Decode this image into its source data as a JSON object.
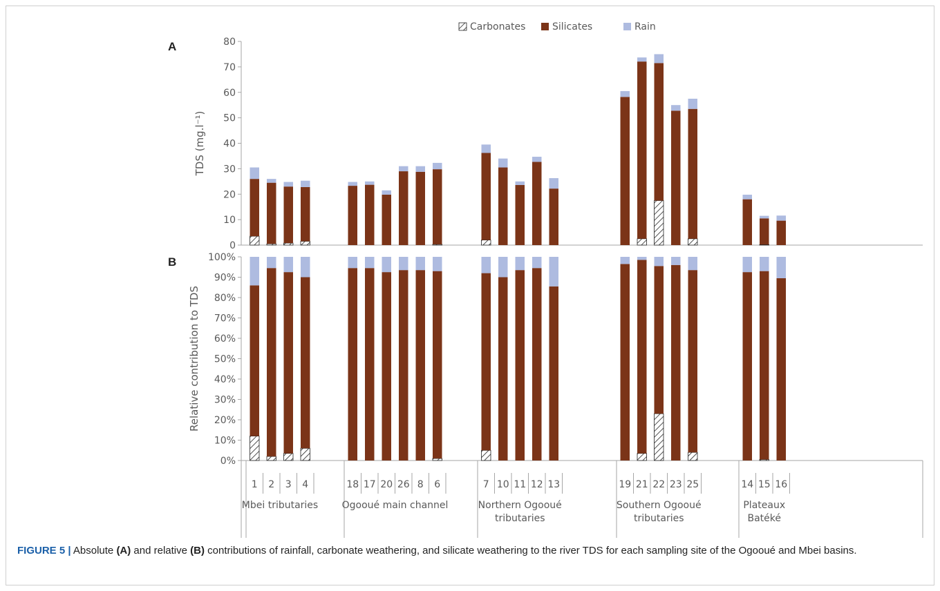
{
  "chart_data": [
    {
      "panel_label": "A",
      "type": "bar",
      "stacked": true,
      "ylabel": "TDS (mg.l⁻¹)",
      "ylim": [
        0,
        80
      ],
      "yticks": [
        0,
        10,
        20,
        30,
        40,
        50,
        60,
        70,
        80
      ],
      "categories": [
        "1",
        "2",
        "3",
        "4",
        "18",
        "17",
        "20",
        "26",
        "8",
        "6",
        "7",
        "10",
        "11",
        "12",
        "13",
        "19",
        "21",
        "22",
        "23",
        "25",
        "14",
        "15",
        "16"
      ],
      "series": [
        {
          "name": "Carbonates",
          "values": [
            3.5,
            0.5,
            0.8,
            1.5,
            0,
            0,
            0,
            0,
            0,
            0.3,
            2.0,
            0,
            0,
            0,
            0,
            0,
            2.5,
            17.5,
            0,
            2.5,
            0,
            0.2,
            0
          ]
        },
        {
          "name": "Silicates",
          "values": [
            22.5,
            24.0,
            22.2,
            21.3,
            23.3,
            23.7,
            19.8,
            29.0,
            28.8,
            29.5,
            34.2,
            30.5,
            23.6,
            32.7,
            22.2,
            58.2,
            69.6,
            54.0,
            52.8,
            51.0,
            18.0,
            10.3,
            9.6
          ]
        },
        {
          "name": "Rain",
          "values": [
            4.5,
            1.5,
            1.8,
            2.5,
            1.5,
            1.3,
            1.7,
            2.0,
            2.2,
            2.5,
            3.3,
            3.5,
            1.4,
            2.0,
            4.1,
            2.3,
            1.6,
            3.5,
            2.2,
            4.0,
            1.8,
            1.0,
            2.0
          ]
        }
      ]
    },
    {
      "panel_label": "B",
      "type": "bar",
      "stacked": true,
      "ylabel": "Relative contribution to TDS",
      "ylim": [
        0,
        100
      ],
      "yticks": [
        "0%",
        "10%",
        "20%",
        "30%",
        "40%",
        "50%",
        "60%",
        "70%",
        "80%",
        "90%",
        "100%"
      ],
      "categories": [
        "1",
        "2",
        "3",
        "4",
        "18",
        "17",
        "20",
        "26",
        "8",
        "6",
        "7",
        "10",
        "11",
        "12",
        "13",
        "19",
        "21",
        "22",
        "23",
        "25",
        "14",
        "15",
        "16"
      ],
      "series": [
        {
          "name": "Carbonates",
          "values": [
            12,
            2,
            3.5,
            6,
            0,
            0,
            0,
            0,
            0,
            1,
            5,
            0,
            0,
            0,
            0,
            0,
            3.5,
            23,
            0,
            4,
            0,
            0.5,
            0
          ]
        },
        {
          "name": "Silicates",
          "values": [
            74,
            92.5,
            89,
            84,
            94.5,
            94.5,
            92.5,
            93.5,
            93.5,
            92,
            87,
            90,
            93.5,
            94.5,
            85.5,
            96.5,
            95,
            72.5,
            96,
            89.5,
            92.5,
            92.5,
            89.5
          ]
        },
        {
          "name": "Rain",
          "values": [
            14,
            5.5,
            7.5,
            10,
            5.5,
            5.5,
            7.5,
            6.5,
            6.5,
            7,
            8,
            10,
            6.5,
            5.5,
            14.5,
            3.5,
            1.5,
            4.5,
            4,
            6.5,
            7.5,
            7,
            10.5
          ]
        }
      ],
      "groups": [
        {
          "label": "Mbei tributaries",
          "sites": [
            "1",
            "2",
            "3",
            "4"
          ]
        },
        {
          "label": "Ogooué main channel",
          "sites": [
            "18",
            "17",
            "20",
            "26",
            "8",
            "6"
          ]
        },
        {
          "label": "Northern Ogooué tributaries",
          "sites": [
            "7",
            "10",
            "11",
            "12",
            "13"
          ]
        },
        {
          "label": "Southern Ogooué tributaries",
          "sites": [
            "19",
            "21",
            "22",
            "23",
            "25"
          ]
        },
        {
          "label": "Plateaux Batéké",
          "sites": [
            "14",
            "15",
            "16"
          ]
        }
      ]
    }
  ],
  "legend": [
    {
      "name": "Carbonates",
      "swatch": "hatch"
    },
    {
      "name": "Silicates",
      "swatch": "#7b3418"
    },
    {
      "name": "Rain",
      "swatch": "#aebbe0"
    }
  ],
  "colors": {
    "carbonates": "#ffffff",
    "silicates": "#7b3418",
    "rain": "#aebbe0",
    "axis": "#a6a6a6",
    "text": "#595959"
  },
  "caption": {
    "label": "FIGURE 5 |",
    "part1": " Absolute ",
    "bold_a": "(A)",
    "part2": " and relative ",
    "bold_b": "(B)",
    "part3": " contributions of rainfall, carbonate weathering, and silicate weathering to the river TDS for each sampling site of the Ogooué and Mbei basins."
  }
}
